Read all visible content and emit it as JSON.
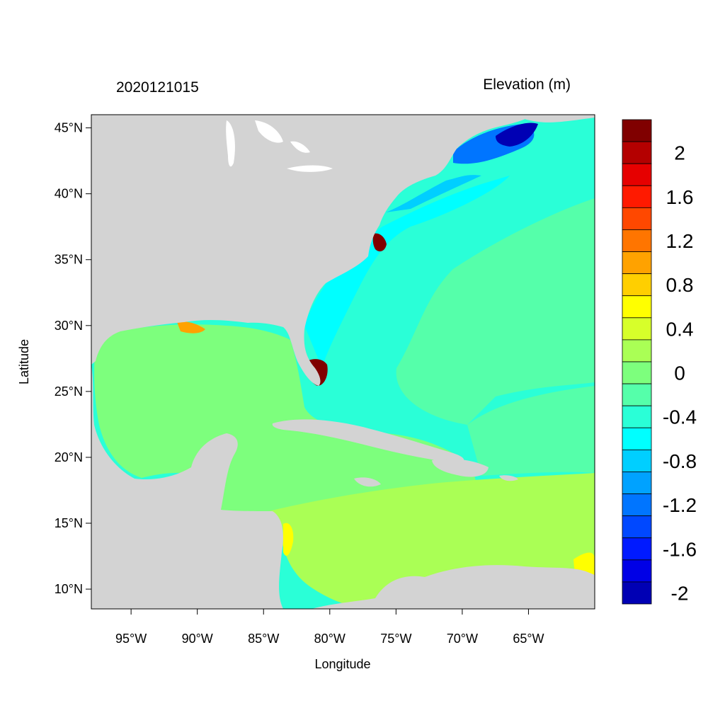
{
  "map": {
    "timestamp": "2020121015",
    "variable_title": "Elevation (m)",
    "xlabel": "Longitude",
    "ylabel": "Latitude",
    "lon_range": [
      -98,
      -60
    ],
    "lat_range": [
      8.5,
      46
    ],
    "lon_ticks": [
      {
        "value": -95,
        "label": "95°W"
      },
      {
        "value": -90,
        "label": "90°W"
      },
      {
        "value": -85,
        "label": "85°W"
      },
      {
        "value": -80,
        "label": "80°W"
      },
      {
        "value": -75,
        "label": "75°W"
      },
      {
        "value": -70,
        "label": "70°W"
      },
      {
        "value": -65,
        "label": "65°W"
      }
    ],
    "lat_ticks": [
      {
        "value": 45,
        "label": "45°N"
      },
      {
        "value": 40,
        "label": "40°N"
      },
      {
        "value": 35,
        "label": "35°N"
      },
      {
        "value": 30,
        "label": "30°N"
      },
      {
        "value": 25,
        "label": "25°N"
      },
      {
        "value": 20,
        "label": "20°N"
      },
      {
        "value": 15,
        "label": "15°N"
      },
      {
        "value": 10,
        "label": "10°N"
      }
    ],
    "land_color": "#d3d3d3"
  },
  "colorbar": {
    "colors": [
      "#800000",
      "#b40000",
      "#e60000",
      "#ff1a00",
      "#ff4800",
      "#ff7500",
      "#ffa200",
      "#ffcf00",
      "#ffff00",
      "#d7ff2a",
      "#aaff55",
      "#7dff7d",
      "#55ffaa",
      "#2affd7",
      "#00ffff",
      "#00cfff",
      "#00a2ff",
      "#0075ff",
      "#0048ff",
      "#001aff",
      "#0000e6",
      "#0000b4"
    ],
    "labels": [
      {
        "boundary": 2,
        "text": "2"
      },
      {
        "boundary": 4,
        "text": "1.6"
      },
      {
        "boundary": 6,
        "text": "1.2"
      },
      {
        "boundary": 8,
        "text": "0.8"
      },
      {
        "boundary": 10,
        "text": "0.4"
      },
      {
        "boundary": 12,
        "text": "0"
      },
      {
        "boundary": 14,
        "text": "-0.4"
      },
      {
        "boundary": 16,
        "text": "-0.8"
      },
      {
        "boundary": 18,
        "text": "-1.2"
      },
      {
        "boundary": 20,
        "text": "-1.6"
      },
      {
        "boundary": 22,
        "text": "-2"
      }
    ]
  }
}
